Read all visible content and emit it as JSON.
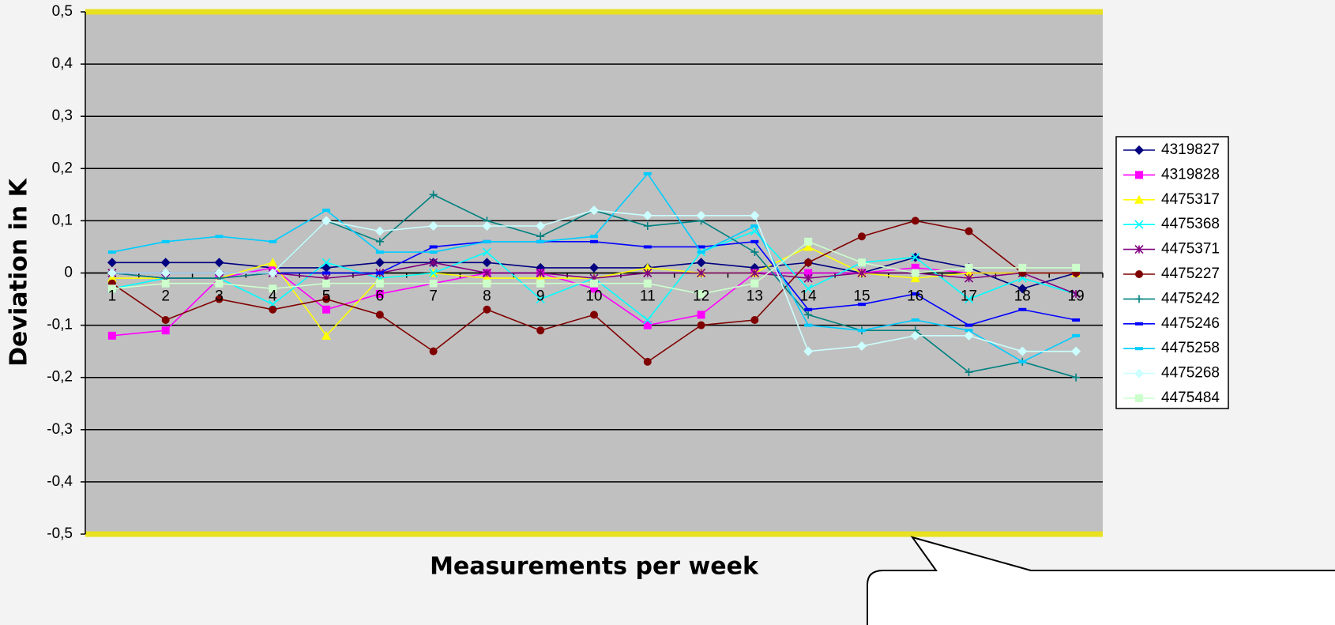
{
  "chart_data": {
    "type": "line",
    "x_label": "Measurements per week",
    "y_label": "Deviation in K",
    "categories": [
      "1",
      "2",
      "3",
      "4",
      "5",
      "6",
      "7",
      "8",
      "9",
      "10",
      "11",
      "12",
      "13",
      "14",
      "15",
      "16",
      "17",
      "18",
      "19"
    ],
    "ylim": [
      -0.5,
      0.5
    ],
    "yticks": [
      {
        "value": -0.5,
        "label": "-0,5"
      },
      {
        "value": -0.4,
        "label": "-0,4"
      },
      {
        "value": -0.3,
        "label": "-0,3"
      },
      {
        "value": -0.2,
        "label": "-0,2"
      },
      {
        "value": -0.1,
        "label": "-0,1"
      },
      0,
      {
        "value": 0.1,
        "label": "0,1"
      },
      {
        "value": 0.2,
        "label": "0,2"
      },
      {
        "value": 0.3,
        "label": "0,3"
      },
      {
        "value": 0.4,
        "label": "0,4"
      },
      {
        "value": 0.5,
        "label": "0,5"
      }
    ],
    "grid": true,
    "legend": "right",
    "series": [
      {
        "name": "4319827",
        "color": "#000080",
        "marker": "diamond",
        "values": [
          0.02,
          0.02,
          0.02,
          0.01,
          0.01,
          0.02,
          0.02,
          0.02,
          0.01,
          0.01,
          0.01,
          0.02,
          0.01,
          0.02,
          0,
          0.03,
          0.01,
          -0.03,
          0
        ]
      },
      {
        "name": "4319828",
        "color": "#ff00ff",
        "marker": "square",
        "values": [
          -0.12,
          -0.11,
          -0.01,
          0.01,
          -0.07,
          -0.04,
          -0.02,
          0,
          0,
          -0.03,
          -0.1,
          -0.08,
          0,
          0,
          0,
          0.01,
          0,
          0,
          0
        ]
      },
      {
        "name": "4475317",
        "color": "#ffff00",
        "marker": "triangle",
        "values": [
          -0.01,
          -0.01,
          -0.01,
          0.02,
          -0.12,
          -0.01,
          0,
          -0.01,
          -0.01,
          -0.01,
          0.01,
          0,
          0,
          0.05,
          0,
          -0.01,
          0,
          0,
          0
        ]
      },
      {
        "name": "4475368",
        "color": "#00ffff",
        "marker": "x",
        "values": [
          -0.03,
          -0.01,
          -0.01,
          -0.06,
          0.02,
          -0.01,
          0,
          0.04,
          -0.05,
          -0.01,
          -0.09,
          0.04,
          0.08,
          -0.03,
          0.02,
          0.03,
          -0.05,
          -0.01,
          -0.04
        ]
      },
      {
        "name": "4475371",
        "color": "#800080",
        "marker": "asterisk",
        "values": [
          0,
          -0.01,
          -0.01,
          0,
          -0.01,
          0,
          0.02,
          0,
          0,
          -0.01,
          0,
          0,
          0,
          -0.01,
          0,
          0,
          -0.01,
          0,
          -0.04
        ]
      },
      {
        "name": "4475227",
        "color": "#800000",
        "marker": "circle",
        "values": [
          -0.02,
          -0.09,
          -0.05,
          -0.07,
          -0.05,
          -0.08,
          -0.15,
          -0.07,
          -0.11,
          -0.08,
          -0.17,
          -0.1,
          -0.09,
          0.02,
          0.07,
          0.1,
          0.08,
          0,
          0
        ]
      },
      {
        "name": "4475242",
        "color": "#008080",
        "marker": "plus",
        "values": [
          0,
          -0.01,
          -0.01,
          0,
          0.1,
          0.06,
          0.15,
          0.1,
          0.07,
          0.12,
          0.09,
          0.1,
          0.04,
          -0.08,
          -0.11,
          -0.11,
          -0.19,
          -0.17,
          -0.2
        ]
      },
      {
        "name": "4475246",
        "color": "#0000ff",
        "marker": "dash",
        "values": [
          0,
          0,
          0,
          0,
          0,
          0,
          0.05,
          0.06,
          0.06,
          0.06,
          0.05,
          0.05,
          0.06,
          -0.07,
          -0.06,
          -0.04,
          -0.1,
          -0.07,
          -0.09
        ]
      },
      {
        "name": "4475258",
        "color": "#00ccff",
        "marker": "dash",
        "values": [
          0.04,
          0.06,
          0.07,
          0.06,
          0.12,
          0.04,
          0.04,
          0.06,
          0.06,
          0.07,
          0.19,
          0.04,
          0.09,
          -0.1,
          -0.11,
          -0.09,
          -0.11,
          -0.17,
          -0.12
        ]
      },
      {
        "name": "4475268",
        "color": "#ccffff",
        "marker": "diamond",
        "values": [
          0,
          0,
          0,
          0,
          0.1,
          0.08,
          0.09,
          0.09,
          0.09,
          0.12,
          0.11,
          0.11,
          0.11,
          -0.15,
          -0.14,
          -0.12,
          -0.12,
          -0.15,
          -0.15
        ]
      },
      {
        "name": "4475484",
        "color": "#ccffcc",
        "marker": "square",
        "values": [
          -0.03,
          -0.02,
          -0.02,
          -0.03,
          -0.02,
          -0.02,
          -0.02,
          -0.02,
          -0.02,
          -0.02,
          -0.02,
          -0.04,
          -0.02,
          0.06,
          0.02,
          0,
          0.01,
          0.01,
          0.01
        ]
      }
    ]
  }
}
